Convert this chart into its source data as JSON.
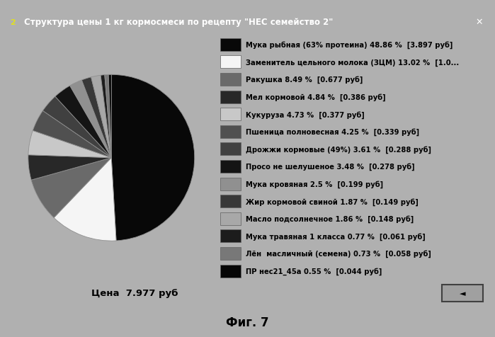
{
  "title": "Структура цены 1 кг кормосмеси по рецепту \"НЕС семейство 2\"",
  "price_label": "Цена  7.977 руб",
  "fig_label": "Фиг. 7",
  "slices": [
    {
      "label": "Мука рыбная (63% протеина) 48.86 %  [3.897 руб]",
      "value": 48.86,
      "color": "#080808"
    },
    {
      "label": "Заменитель цельного молока (ЗЦМ) 13.02 %  [1.0...",
      "value": 13.02,
      "color": "#f5f5f5"
    },
    {
      "label": "Ракушка 8.49 %  [0.677 руб]",
      "value": 8.49,
      "color": "#6a6a6a"
    },
    {
      "label": "Мел кормовой 4.84 %  [0.386 руб]",
      "value": 4.84,
      "color": "#282828"
    },
    {
      "label": "Кукуруза 4.73 %  [0.377 руб]",
      "value": 4.73,
      "color": "#c8c8c8"
    },
    {
      "label": "Пшеница полновесная 4.25 %  [0.339 руб]",
      "value": 4.25,
      "color": "#505050"
    },
    {
      "label": "Дрожжи кормовые (49%) 3.61 %  [0.288 руб]",
      "value": 3.61,
      "color": "#404040"
    },
    {
      "label": "Просо не шелушеное 3.48 %  [0.278 руб]",
      "value": 3.48,
      "color": "#141414"
    },
    {
      "label": "Мука кровяная 2.5 %  [0.199 руб]",
      "value": 2.5,
      "color": "#909090"
    },
    {
      "label": "Жир кормовой свиной 1.87 %  [0.149 руб]",
      "value": 1.87,
      "color": "#383838"
    },
    {
      "label": "Масло подсолнечное 1.86 %  [0.148 руб]",
      "value": 1.86,
      "color": "#a8a8a8"
    },
    {
      "label": "Мука травяная 1 класса 0.77 %  [0.061 руб]",
      "value": 0.77,
      "color": "#1c1c1c"
    },
    {
      "label": "Лён  масличный (семена) 0.73 %  [0.058 руб]",
      "value": 0.73,
      "color": "#787878"
    },
    {
      "label": "ПР нес21_45а 0.55 %  [0.044 руб]",
      "value": 0.55,
      "color": "#060606"
    }
  ],
  "outer_bg": "#b0b0b0",
  "window_bg": "#b8b8b8",
  "titlebar_bg": "#686868",
  "titlebar_text": "#ffffff",
  "content_bg": "#c0c0c0",
  "bottom_bg": "#c0c0c0",
  "legend_text_color": "#000000",
  "legend_fontsize": 7.2,
  "title_fontsize": 8.5,
  "price_fontsize": 9.5,
  "figlabel_fontsize": 12
}
